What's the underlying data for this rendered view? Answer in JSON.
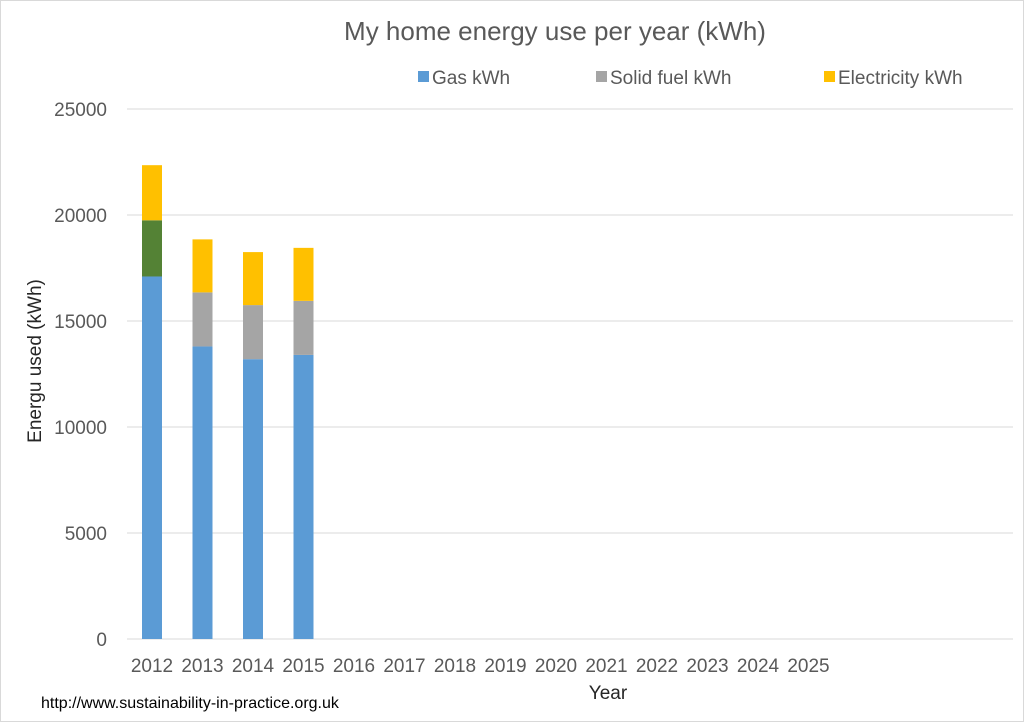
{
  "chart_data": {
    "type": "bar",
    "stacked": true,
    "title": "My home energy use per year (kWh)",
    "xlabel": "Year",
    "ylabel": "Energu used (kWh)",
    "ylim": [
      0,
      25000
    ],
    "yticks": [
      0,
      5000,
      10000,
      15000,
      20000,
      25000
    ],
    "grid": true,
    "legend_position": "top",
    "categories": [
      "2012",
      "2013",
      "2014",
      "2015",
      "2016",
      "2017",
      "2018",
      "2019",
      "2020",
      "2021",
      "2022",
      "2023",
      "2024",
      "2025"
    ],
    "series": [
      {
        "name": "Gas kWh",
        "color": "#5b9bd5",
        "values": [
          17100,
          13800,
          13200,
          13400,
          null,
          null,
          null,
          null,
          null,
          null,
          null,
          null,
          null,
          null
        ]
      },
      {
        "name": "Solid fuel kWh",
        "color": "#a5a5a5",
        "point_colors": [
          "#548235",
          null,
          null,
          null,
          null,
          null,
          null,
          null,
          null,
          null,
          null,
          null,
          null,
          null
        ],
        "values": [
          2650,
          2550,
          2550,
          2550,
          null,
          null,
          null,
          null,
          null,
          null,
          null,
          null,
          null,
          null
        ]
      },
      {
        "name": "Electricity kWh",
        "color": "#ffc000",
        "values": [
          2600,
          2500,
          2500,
          2500,
          null,
          null,
          null,
          null,
          null,
          null,
          null,
          null,
          null,
          null
        ]
      }
    ]
  },
  "source": "http://www.sustainability-in-practice.org.uk"
}
